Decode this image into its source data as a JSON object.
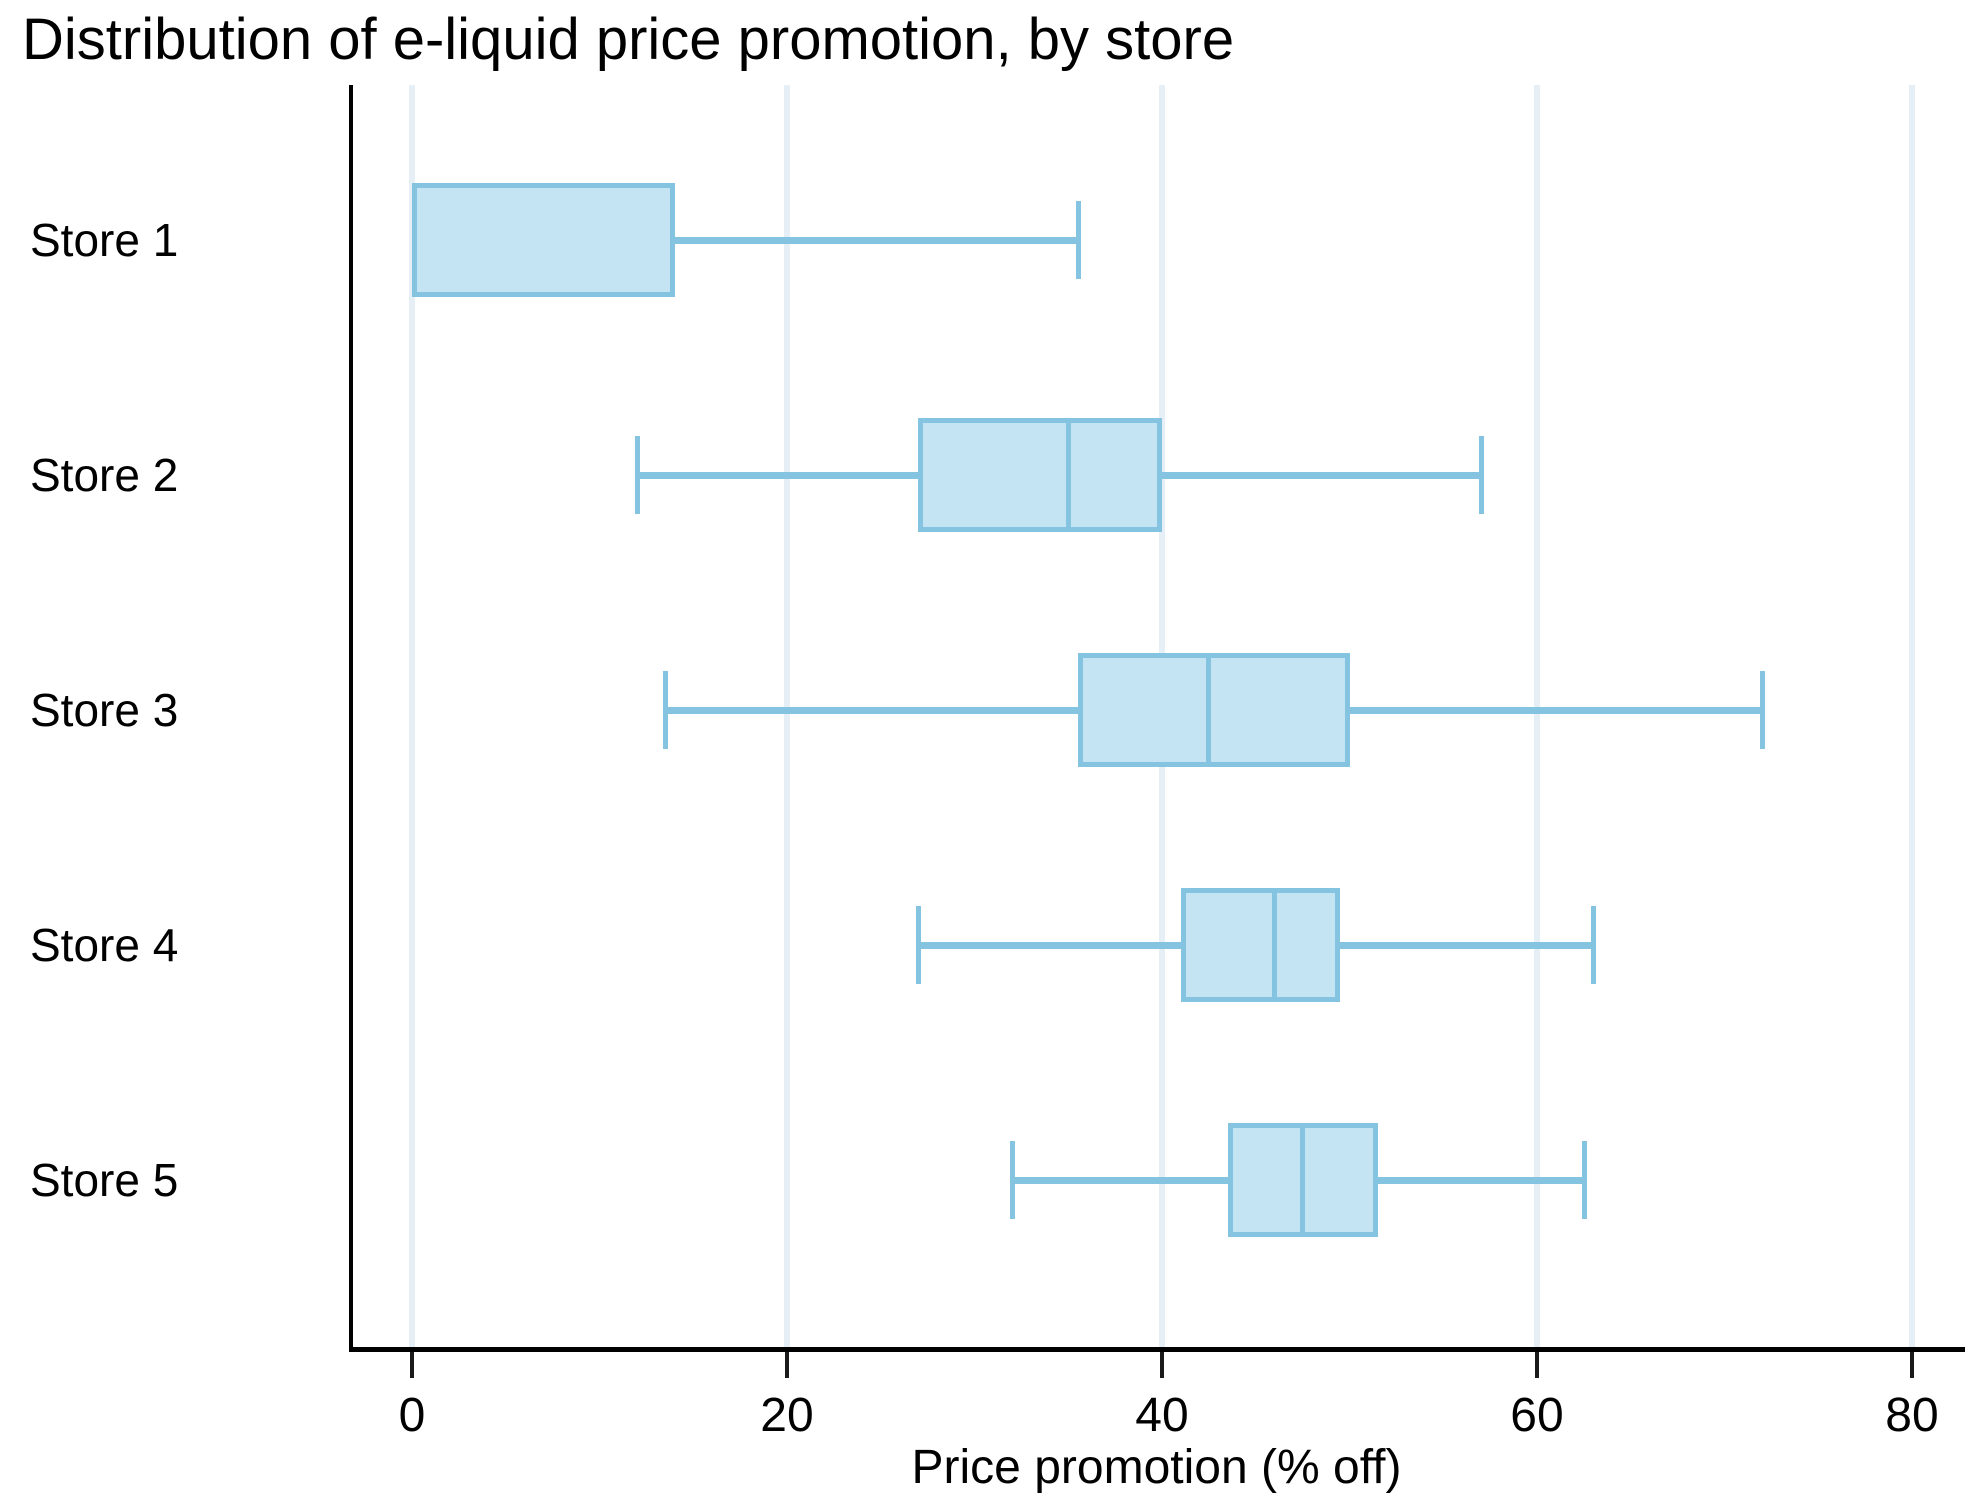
{
  "chart_data": {
    "type": "boxplot",
    "orientation": "horizontal",
    "title": "Distribution of e-liquid price promotion, by store",
    "xlabel": "Price promotion (% off)",
    "ylabel": "",
    "x_ticks": [
      0,
      20,
      40,
      60,
      80
    ],
    "xlim": [
      -3.25,
      82.7
    ],
    "grid": "vertical-on",
    "legend": "none",
    "categories": [
      "Store 1",
      "Store 2",
      "Store 3",
      "Store 4",
      "Store 5"
    ],
    "series": [
      {
        "name": "Store 1",
        "whisker_low": 0,
        "q1": 0,
        "median": 0,
        "q3": 14,
        "whisker_high": 35.5
      },
      {
        "name": "Store 2",
        "whisker_low": 12,
        "q1": 27,
        "median": 35,
        "q3": 40,
        "whisker_high": 57
      },
      {
        "name": "Store 3",
        "whisker_low": 13.5,
        "q1": 35.5,
        "median": 42.5,
        "q3": 50,
        "whisker_high": 72
      },
      {
        "name": "Store 4",
        "whisker_low": 27,
        "q1": 41,
        "median": 46,
        "q3": 49.5,
        "whisker_high": 63
      },
      {
        "name": "Store 5",
        "whisker_low": 32,
        "q1": 43.5,
        "median": 47.5,
        "q3": 51.5,
        "whisker_high": 62.5
      }
    ],
    "colors": {
      "box_fill": "#c4e3f3",
      "box_border": "#84c4e1",
      "whisker": "#84c4e1",
      "median_line": "#84c4e1",
      "gridline": "#e5eff5",
      "axis": "#000000",
      "text": "#000000",
      "background": "#ffffff"
    }
  }
}
